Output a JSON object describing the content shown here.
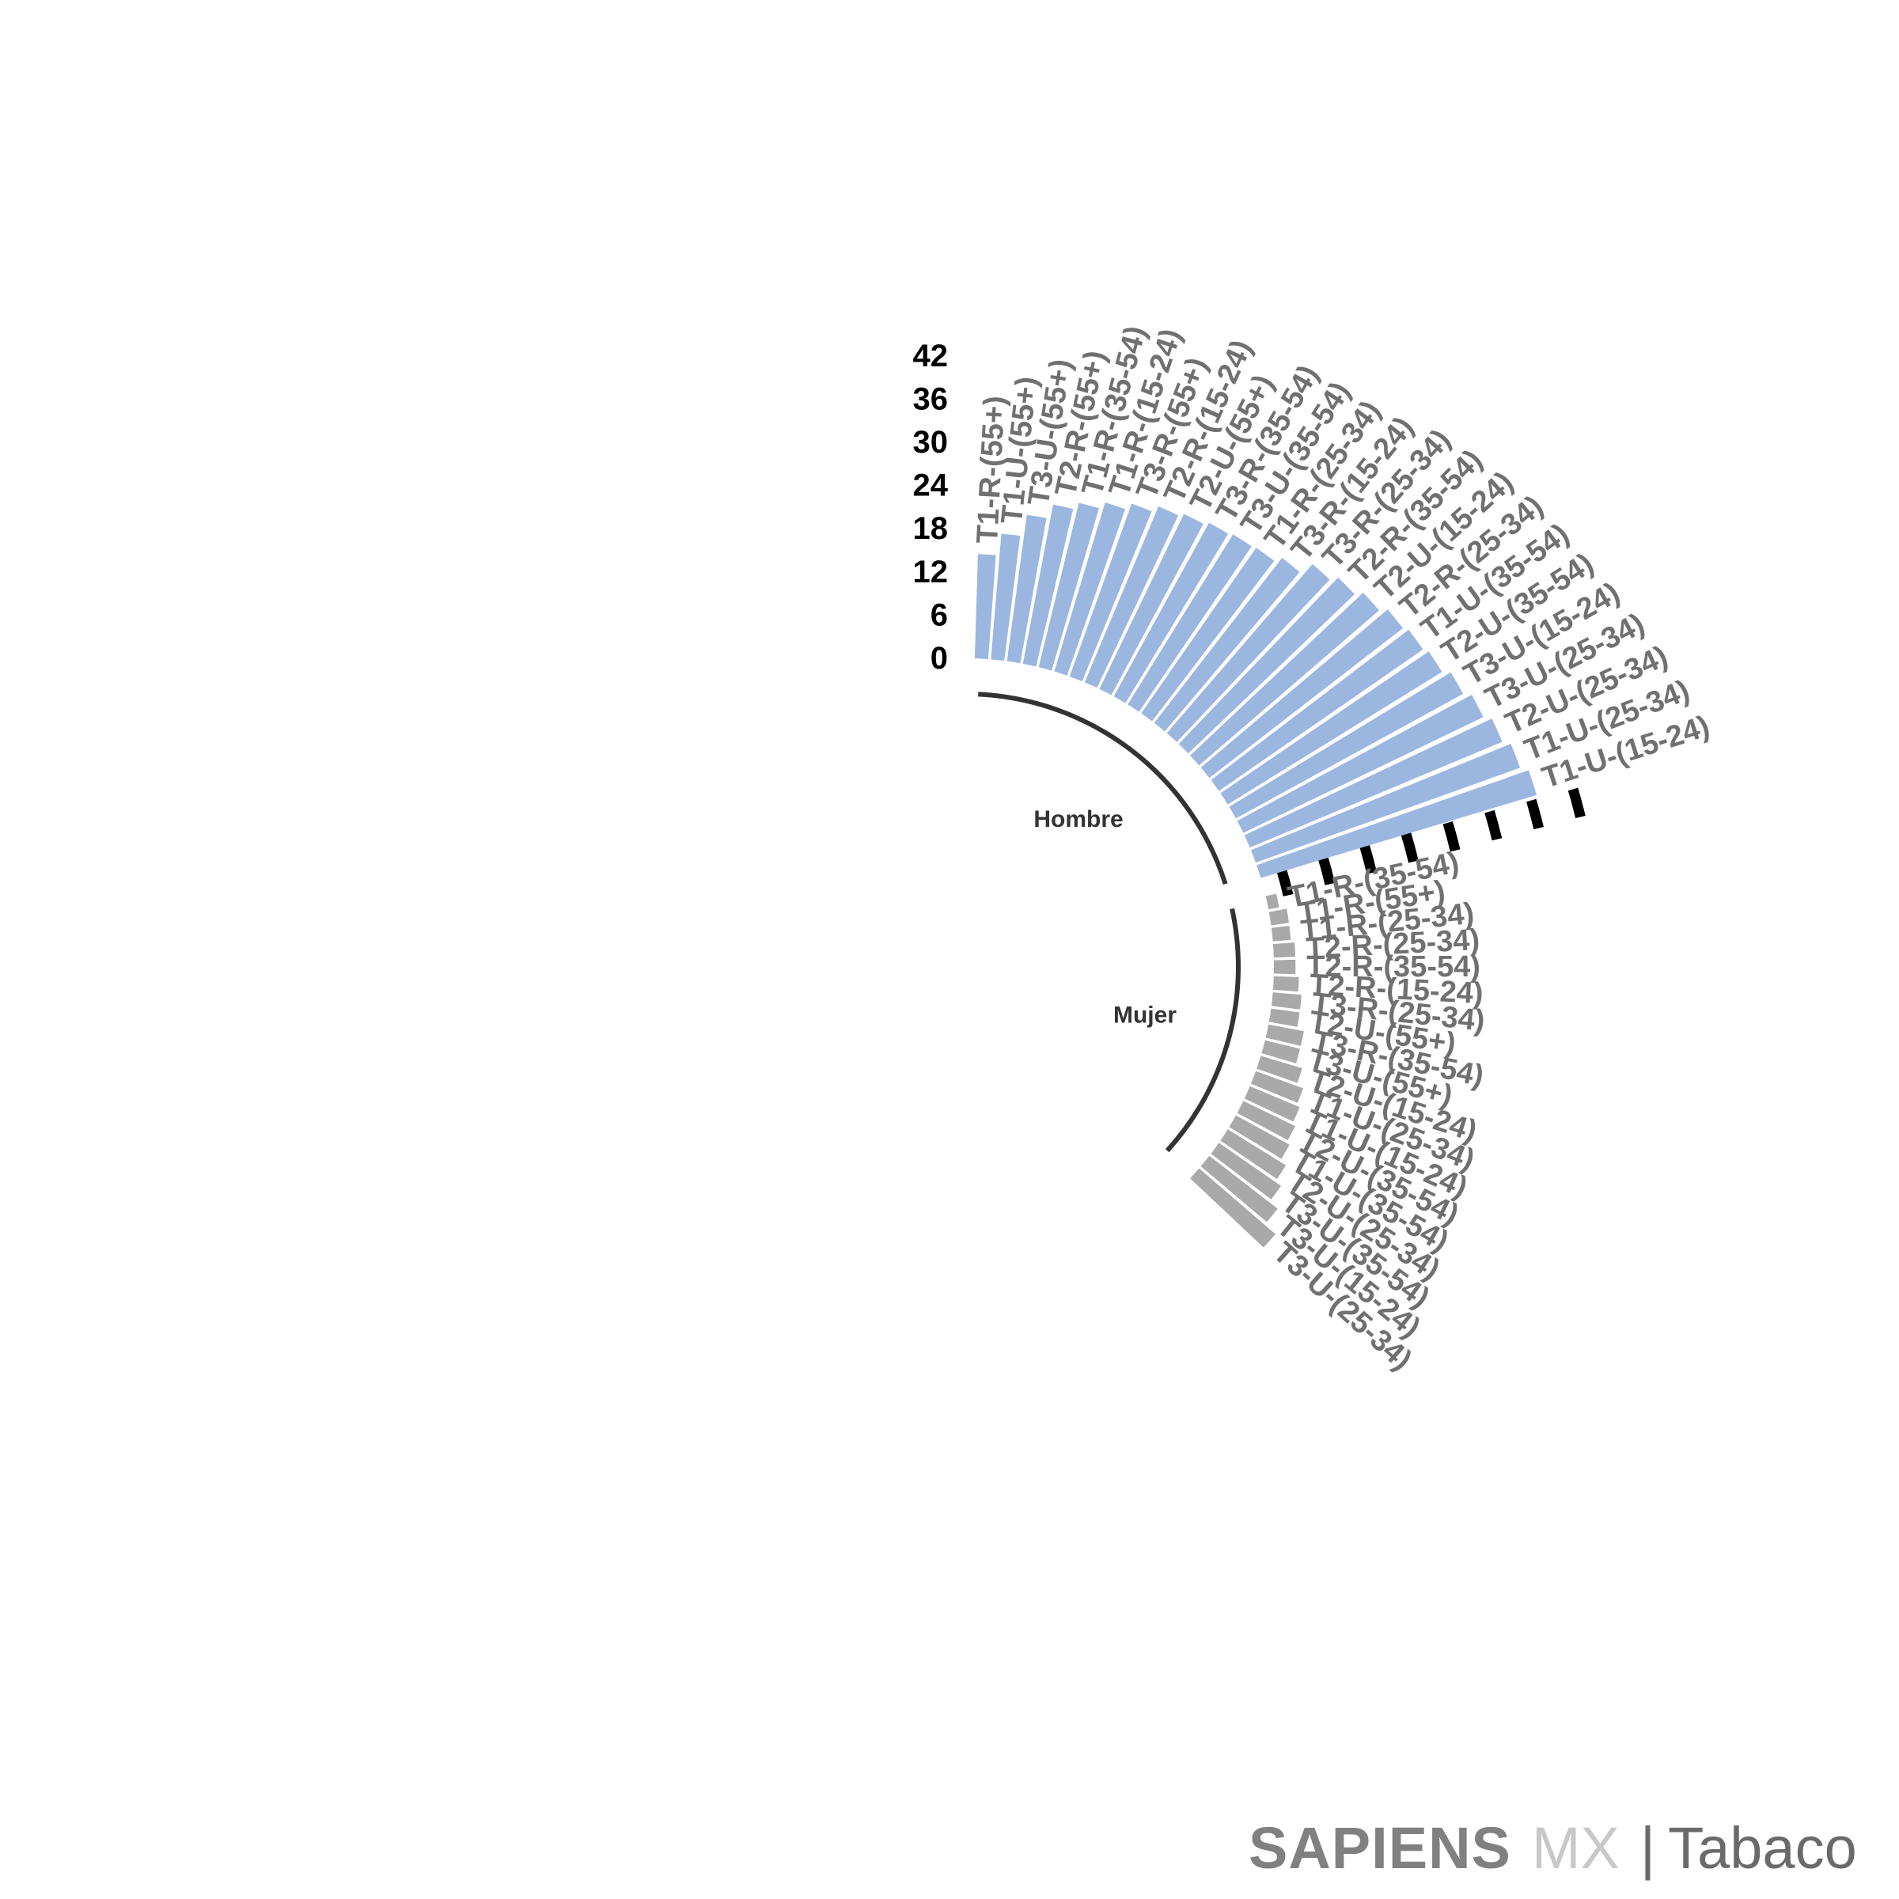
{
  "chart_data": {
    "type": "circular-bar",
    "title": "",
    "radial_ticks": [
      0,
      6,
      12,
      18,
      24,
      30,
      36,
      42
    ],
    "ylim": [
      0,
      42
    ],
    "groups": [
      {
        "name": "Hombre",
        "color": "#9bb7e0",
        "categories": [
          "T1-R-(55+)",
          "T1-U-(55+)",
          "T3-U-(55+)",
          "T2-R-(55+)",
          "T1-R-(35-54)",
          "T1-R-(15-24)",
          "T3-R-(55+)",
          "T2-R-(15-24)",
          "T2-U-(55+)",
          "T3-R-(35-54)",
          "T3-U-(35-54)",
          "T1-R-(25-34)",
          "T3-R-(15-24)",
          "T3-R-(25-34)",
          "T2-R-(35-54)",
          "T2-U-(15-24)",
          "T2-R-(25-34)",
          "T1-U-(35-54)",
          "T2-U-(35-54)",
          "T3-U-(15-24)",
          "T3-U-(25-34)",
          "T2-U-(25-34)",
          "T1-U-(25-34)",
          "T1-U-(15-24)"
        ],
        "values": [
          14.5,
          17.5,
          20.5,
          22.5,
          23.5,
          24.5,
          25.5,
          26.5,
          27,
          27.5,
          27.8,
          28,
          29,
          31,
          32,
          33,
          34,
          34.5,
          35,
          36,
          37,
          38,
          39,
          40
        ]
      },
      {
        "name": "Mujer",
        "color": "#a9a9a9",
        "categories": [
          "T1-R-(35-54)",
          "T1-R-(55+)",
          "T1-R-(25-34)",
          "T2-R-(25-34)",
          "T2-R-(35-54)",
          "T2-R-(15-24)",
          "T3-R-(25-34)",
          "T2-U-(55+)",
          "T3-R-(35-54)",
          "T3-U-(55+)",
          "T2-U-(15-24)",
          "T1-U-(25-34)",
          "T1-U-(15-24)",
          "T2-U-(35-54)",
          "T1-U-(35-54)",
          "T2-U-(25-34)",
          "T3-U-(35-54)",
          "T3-U-(15-24)",
          "T3-U-(25-34)"
        ],
        "values": [
          1.5,
          2.5,
          2.5,
          3,
          3,
          3.5,
          4,
          4,
          5,
          5,
          6,
          7,
          7.5,
          8,
          8.5,
          9.5,
          10.5,
          12,
          14
        ]
      }
    ]
  },
  "brand": {
    "name": "SAPIENS",
    "suffix": "MX",
    "separator": "|",
    "section": "Tabaco"
  }
}
